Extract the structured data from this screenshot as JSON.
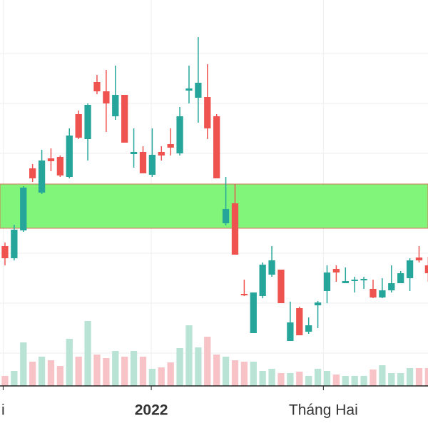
{
  "chart_data": {
    "type": "candlestick",
    "open": [
      196,
      179,
      218,
      305,
      271,
      319,
      321,
      293,
      381,
      346,
      426,
      413,
      378,
      408,
      325,
      328,
      296,
      328,
      339,
      326,
      414,
      404,
      405,
      378,
      228,
      256,
      129,
      74,
      126,
      156,
      163,
      63,
      109,
      76,
      113,
      133,
      164,
      144,
      147,
      148,
      136,
      124,
      134,
      144,
      151,
      180,
      169
    ],
    "close": [
      179,
      219,
      278,
      291,
      316,
      315,
      295,
      351,
      348,
      394,
      413,
      396,
      408,
      341,
      328,
      298,
      324,
      323,
      334,
      378,
      417,
      425,
      361,
      291,
      248,
      184,
      127,
      131,
      170,
      176,
      116,
      89,
      71,
      85,
      117,
      159,
      159,
      147,
      149,
      150,
      124,
      134,
      144,
      158,
      176,
      176,
      158
    ],
    "high": [
      201,
      226,
      280,
      311,
      331,
      333,
      323,
      361,
      386,
      396,
      436,
      443,
      449,
      408,
      361,
      336,
      361,
      336,
      361,
      391,
      449,
      489,
      451,
      381,
      293,
      283,
      149,
      131,
      173,
      196,
      163,
      118,
      111,
      96,
      119,
      169,
      169,
      166,
      153,
      153,
      149,
      151,
      169,
      161,
      179,
      196,
      181
    ],
    "low": [
      169,
      176,
      216,
      286,
      269,
      301,
      293,
      291,
      346,
      316,
      409,
      356,
      373,
      341,
      306,
      298,
      293,
      316,
      323,
      323,
      396,
      369,
      346,
      291,
      225,
      184,
      126,
      74,
      123,
      153,
      116,
      63,
      71,
      73,
      81,
      116,
      146,
      144,
      131,
      136,
      123,
      123,
      131,
      144,
      133,
      173,
      146
    ],
    "volume": [
      14,
      21,
      61,
      34,
      41,
      36,
      28,
      66,
      41,
      91,
      44,
      39,
      49,
      41,
      49,
      41,
      24,
      26,
      33,
      53,
      85,
      54,
      69,
      44,
      41,
      36,
      34,
      34,
      21,
      24,
      18,
      18,
      20,
      14,
      24,
      21,
      16,
      14,
      14,
      14,
      23,
      29,
      18,
      18,
      25,
      25,
      25
    ],
    "up_color": "#26a69a",
    "down_color": "#ef5350",
    "volume_up_color": "#b9e3d4",
    "volume_down_color": "#f7c3c6",
    "ylim": [
      0,
      541
    ],
    "yticks": [
      46,
      116,
      186,
      256,
      326,
      396,
      466
    ],
    "y2lim": [
      0,
      541
    ],
    "xlim": [
      -0.54,
      45.97
    ],
    "xticks": [
      {
        "value": -0.2,
        "label": "i"
      },
      {
        "value": 15.9,
        "label": "2022"
      },
      {
        "value": 34.6,
        "label": "Tháng Hai"
      }
    ],
    "grid": true,
    "band": {
      "range": [
        221,
        283
      ],
      "color": "#80f57a"
    }
  }
}
